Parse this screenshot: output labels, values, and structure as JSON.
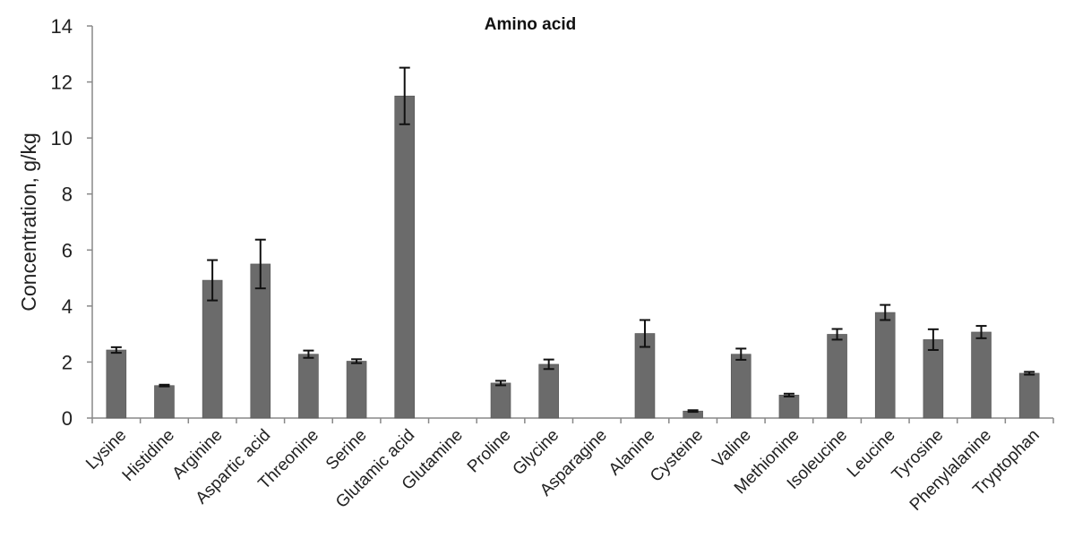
{
  "chart_data": {
    "type": "bar",
    "title": "Amino acid",
    "xlabel": "",
    "ylabel": "Concentration, g/kg",
    "ylim": [
      0,
      14
    ],
    "yticks": [
      "0",
      "2",
      "4",
      "6",
      "8",
      "10",
      "12",
      "14"
    ],
    "grid": false,
    "bar_color": "#6b6b6b",
    "categories": [
      "Lysine",
      "Histidine",
      "Arginine",
      "Aspartic acid",
      "Threonine",
      "Serine",
      "Glutamic acid",
      "Glutamine",
      "Proline",
      "Glycine",
      "Asparagine",
      "Alanine",
      "Cysteine",
      "Valine",
      "Methionine",
      "Isoleucine",
      "Leucine",
      "Tyrosine",
      "Phenylalanine",
      "Tryptophan"
    ],
    "values": [
      2.43,
      1.16,
      4.92,
      5.5,
      2.28,
      2.03,
      11.5,
      0,
      1.25,
      1.92,
      0,
      3.02,
      0.25,
      2.28,
      0.82,
      2.99,
      3.77,
      2.8,
      3.07,
      1.6
    ],
    "errors": [
      0.1,
      0.03,
      0.72,
      0.87,
      0.13,
      0.07,
      1.01,
      0,
      0.08,
      0.17,
      0,
      0.48,
      0.03,
      0.2,
      0.05,
      0.19,
      0.27,
      0.37,
      0.22,
      0.05
    ]
  }
}
